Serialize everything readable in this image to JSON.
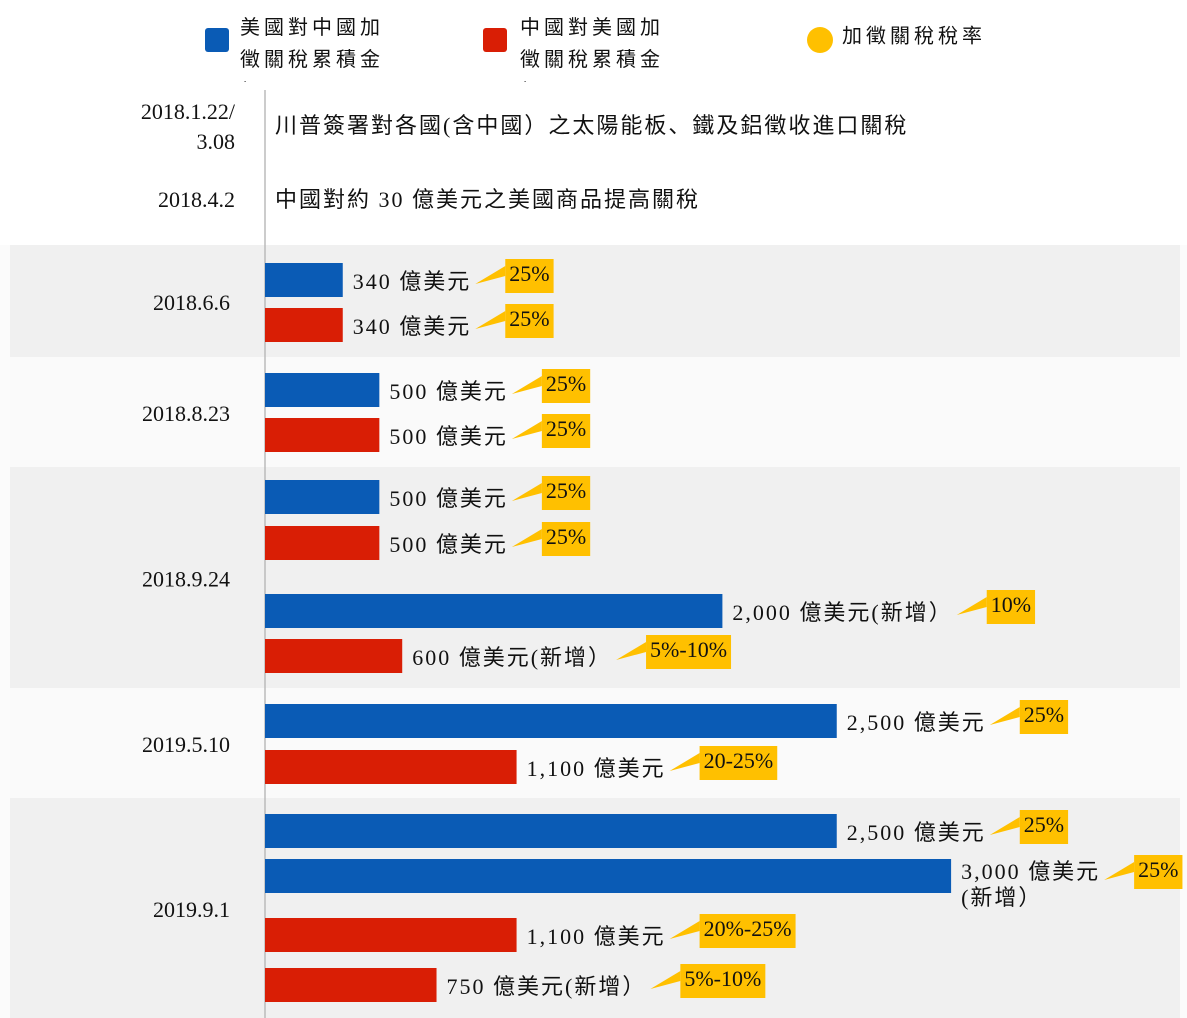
{
  "chart_data": {
    "type": "bar",
    "series": [
      {
        "name": "美國對中國加徵關稅累積金額",
        "color": "#0a5bb5"
      },
      {
        "name": "中國對美國加徵關稅累積金額",
        "color": "#d91e05"
      }
    ],
    "rate_legend": {
      "name": "加徵關稅稅率",
      "color": "#ffc000"
    },
    "events": [
      {
        "date": [
          "2018.1.22/",
          "3.08"
        ],
        "text": "川普簽署對各國(含中國）之太陽能板、鐵及鋁徵收進口關稅"
      },
      {
        "date": [
          "2018.4.2"
        ],
        "text": "中國對約 30 億美元之美國商品提高關稅"
      }
    ],
    "groups": [
      {
        "date": "2018.6.6",
        "bars": [
          {
            "series": 0,
            "value": 340,
            "value_label": [
              "340 億美元"
            ],
            "rate": "25%"
          },
          {
            "series": 1,
            "value": 340,
            "value_label": [
              "340 億美元"
            ],
            "rate": "25%"
          }
        ]
      },
      {
        "date": "2018.8.23",
        "bars": [
          {
            "series": 0,
            "value": 500,
            "value_label": [
              "500 億美元"
            ],
            "rate": "25%"
          },
          {
            "series": 1,
            "value": 500,
            "value_label": [
              "500 億美元"
            ],
            "rate": "25%"
          }
        ]
      },
      {
        "date": "2018.9.24",
        "bars": [
          {
            "series": 0,
            "value": 500,
            "value_label": [
              "500 億美元"
            ],
            "rate": "25%"
          },
          {
            "series": 1,
            "value": 500,
            "value_label": [
              "500 億美元"
            ],
            "rate": "25%"
          },
          {
            "series": 0,
            "value": 2000,
            "value_label": [
              "2,000 億美元(新增）"
            ],
            "rate": "10%"
          },
          {
            "series": 1,
            "value": 600,
            "value_label": [
              "600 億美元(新增）"
            ],
            "rate": "5%-10%"
          }
        ]
      },
      {
        "date": "2019.5.10",
        "bars": [
          {
            "series": 0,
            "value": 2500,
            "value_label": [
              "2,500 億美元"
            ],
            "rate": "25%"
          },
          {
            "series": 1,
            "value": 1100,
            "value_label": [
              "1,100 億美元"
            ],
            "rate": "20-25%"
          }
        ]
      },
      {
        "date": "2019.9.1",
        "bars": [
          {
            "series": 0,
            "value": 2500,
            "value_label": [
              "2,500 億美元"
            ],
            "rate": "25%"
          },
          {
            "series": 0,
            "value": 3000,
            "value_label": [
              "3,000 億美元",
              "(新增）"
            ],
            "rate": "25%"
          },
          {
            "series": 1,
            "value": 1100,
            "value_label": [
              "1,100 億美元"
            ],
            "rate": "20%-25%"
          },
          {
            "series": 1,
            "value": 750,
            "value_label": [
              "750 億美元(新增）"
            ],
            "rate": "5%-10%"
          }
        ]
      }
    ]
  }
}
